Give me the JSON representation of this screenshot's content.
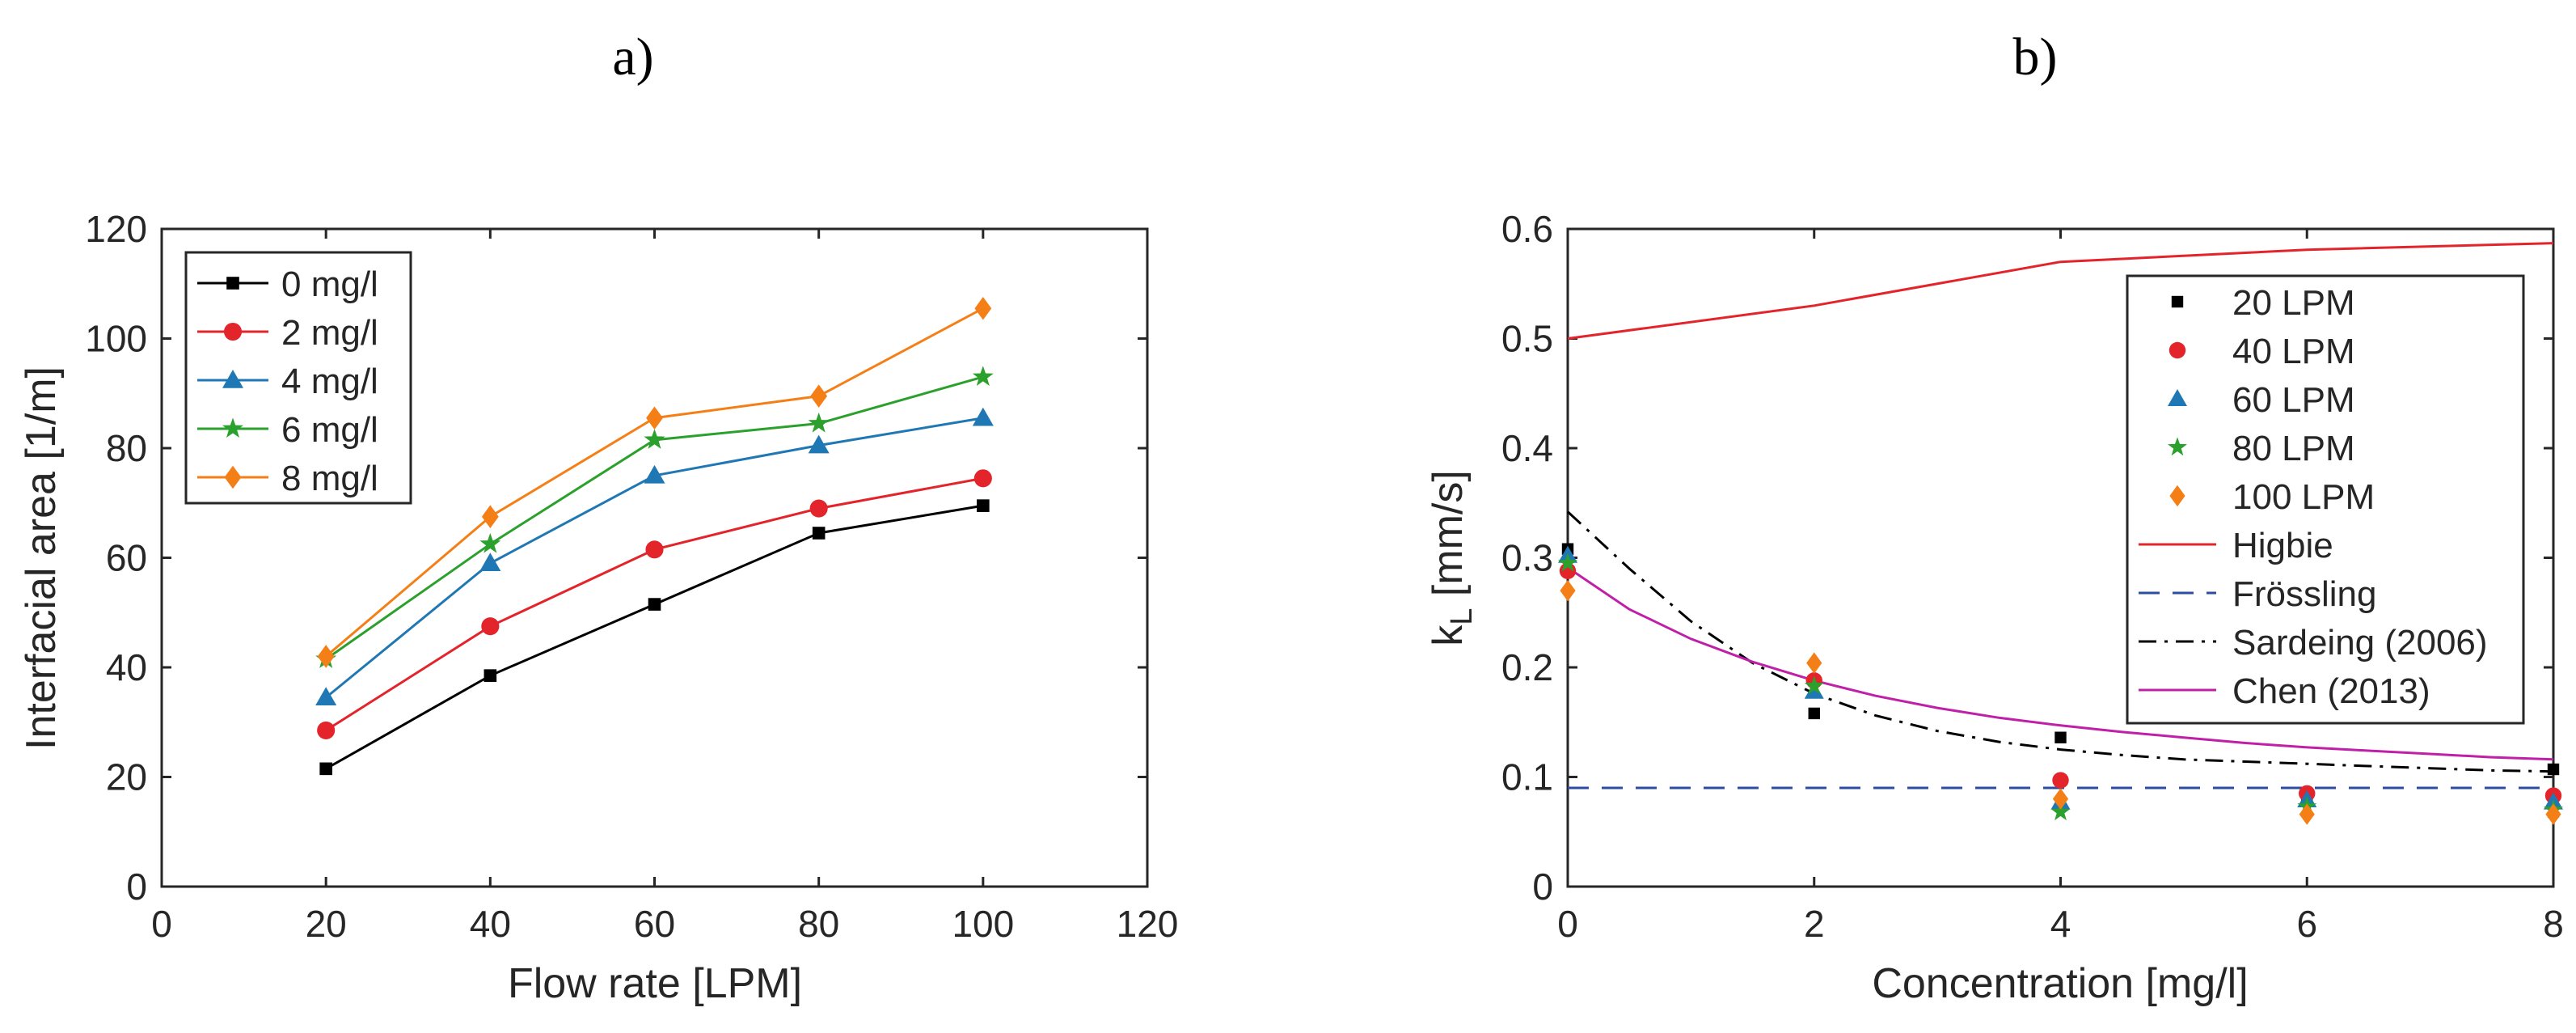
{
  "panels": {
    "a": {
      "label": "a)"
    },
    "b": {
      "label": "b)"
    }
  },
  "chart_data": [
    {
      "type": "line",
      "panel": "a",
      "xlabel": "Flow rate [LPM]",
      "ylabel": "Interfacial area [1/m]",
      "xlim": [
        0,
        120
      ],
      "ylim": [
        0,
        120
      ],
      "xticks": [
        0,
        20,
        40,
        60,
        80,
        100,
        120
      ],
      "yticks": [
        0,
        20,
        40,
        60,
        80,
        100,
        120
      ],
      "grid": false,
      "legend_position": "top-left",
      "x": [
        20,
        40,
        60,
        80,
        100
      ],
      "series": [
        {
          "name": "0 mg/l",
          "values": [
            21.5,
            38.5,
            51.5,
            64.5,
            69.5
          ],
          "color": "#000000",
          "marker": "square"
        },
        {
          "name": "2 mg/l",
          "values": [
            28.5,
            47.5,
            61.5,
            69.0,
            74.5
          ],
          "color": "#e3242b",
          "marker": "circle"
        },
        {
          "name": "4 mg/l",
          "values": [
            34.5,
            59.0,
            75.0,
            80.5,
            85.5
          ],
          "color": "#1f77b4",
          "marker": "triangle"
        },
        {
          "name": "6 mg/l",
          "values": [
            41.5,
            62.5,
            81.5,
            84.5,
            93.0
          ],
          "color": "#2ca02c",
          "marker": "star"
        },
        {
          "name": "8 mg/l",
          "values": [
            42.0,
            67.5,
            85.5,
            89.5,
            105.5
          ],
          "color": "#f57f17",
          "marker": "diamond"
        }
      ]
    },
    {
      "type": "scatter",
      "panel": "b",
      "xlabel_main": "Concentration [mg/l]",
      "ylabel_main": "k",
      "ylabel_sub": "L",
      "ylabel_rest": " [mm/s]",
      "xlim": [
        0,
        8
      ],
      "ylim": [
        0,
        0.6
      ],
      "xticks": [
        0,
        2,
        4,
        6,
        8
      ],
      "yticks": [
        0,
        0.1,
        0.2,
        0.3,
        0.4,
        0.5,
        0.6
      ],
      "xtick_labels": [
        "0",
        "2",
        "4",
        "6",
        "8"
      ],
      "ytick_labels": [
        "0",
        "0.1",
        "0.2",
        "0.3",
        "0.4",
        "0.5",
        "0.6"
      ],
      "grid": false,
      "legend_position": "top-right",
      "x": [
        0,
        2,
        4,
        6,
        8
      ],
      "series": [
        {
          "name": "20 LPM",
          "values": [
            0.308,
            0.158,
            0.136,
            0.082,
            0.107
          ],
          "color": "#000000",
          "marker": "square"
        },
        {
          "name": "40 LPM",
          "values": [
            0.288,
            0.188,
            0.097,
            0.085,
            0.083
          ],
          "color": "#e3242b",
          "marker": "circle"
        },
        {
          "name": "60 LPM",
          "values": [
            0.302,
            0.178,
            0.077,
            0.079,
            0.077
          ],
          "color": "#1f77b4",
          "marker": "triangle"
        },
        {
          "name": "80 LPM",
          "values": [
            0.295,
            0.183,
            0.068,
            0.073,
            0.07
          ],
          "color": "#2ca02c",
          "marker": "star"
        },
        {
          "name": "100 LPM",
          "values": [
            0.27,
            0.204,
            0.08,
            0.066,
            0.066
          ],
          "color": "#f57f17",
          "marker": "diamond"
        }
      ],
      "lines": [
        {
          "name": "Higbie",
          "color": "#e3242b",
          "dash": "solid",
          "points": [
            [
              0,
              0.5
            ],
            [
              2,
              0.53
            ],
            [
              4,
              0.57
            ],
            [
              6,
              0.581
            ],
            [
              8,
              0.587
            ]
          ]
        },
        {
          "name": "Frössling",
          "color": "#2b4ea2",
          "dash": "dashed",
          "points": [
            [
              0,
              0.09
            ],
            [
              8,
              0.09
            ]
          ]
        },
        {
          "name": "Sardeing (2006)",
          "color": "#000000",
          "dash": "dashdot",
          "points": [
            [
              0,
              0.342
            ],
            [
              0.5,
              0.29
            ],
            [
              1,
              0.242
            ],
            [
              1.5,
              0.204
            ],
            [
              2,
              0.176
            ],
            [
              2.5,
              0.156
            ],
            [
              3,
              0.142
            ],
            [
              3.5,
              0.132
            ],
            [
              4,
              0.125
            ],
            [
              4.5,
              0.12
            ],
            [
              5,
              0.116
            ],
            [
              5.5,
              0.114
            ],
            [
              6,
              0.112
            ],
            [
              6.5,
              0.11
            ],
            [
              7,
              0.108
            ],
            [
              7.5,
              0.106
            ],
            [
              8,
              0.105
            ]
          ]
        },
        {
          "name": "Chen (2013)",
          "color": "#c020a8",
          "dash": "solid",
          "points": [
            [
              0,
              0.291
            ],
            [
              0.5,
              0.253
            ],
            [
              1,
              0.226
            ],
            [
              1.5,
              0.205
            ],
            [
              2,
              0.188
            ],
            [
              2.5,
              0.174
            ],
            [
              3,
              0.163
            ],
            [
              3.5,
              0.154
            ],
            [
              4,
              0.147
            ],
            [
              4.5,
              0.141
            ],
            [
              5,
              0.136
            ],
            [
              5.5,
              0.131
            ],
            [
              6,
              0.127
            ],
            [
              6.5,
              0.124
            ],
            [
              7,
              0.121
            ],
            [
              7.5,
              0.118
            ],
            [
              8,
              0.116
            ]
          ]
        }
      ]
    }
  ]
}
